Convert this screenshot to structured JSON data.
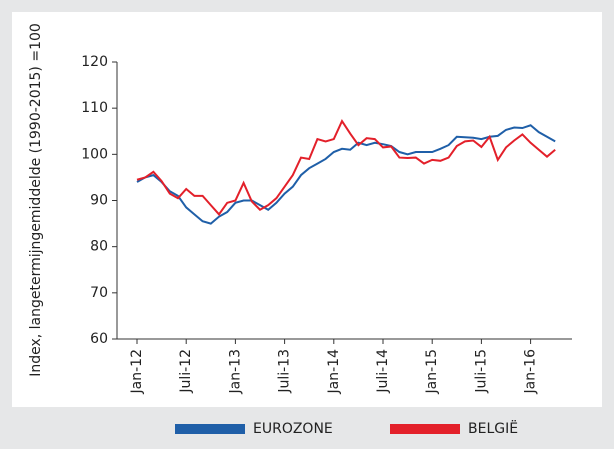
{
  "chart_data": {
    "type": "line",
    "y_label": "Index, langetermijngemiddelde (1990-2015) =100",
    "categories": [
      "Jan-12",
      null,
      null,
      null,
      null,
      null,
      "Juli-12",
      null,
      null,
      null,
      null,
      null,
      "Jan-13",
      null,
      null,
      null,
      null,
      null,
      "Juli-13",
      null,
      null,
      null,
      null,
      null,
      "Jan-14",
      null,
      null,
      null,
      null,
      null,
      "Juli-14",
      null,
      null,
      null,
      null,
      null,
      "Jan-15",
      null,
      null,
      null,
      null,
      null,
      "Juli-15",
      null,
      null,
      null,
      null,
      null,
      "Jan-16",
      null,
      null,
      null
    ],
    "series": [
      {
        "name": "EUROZONE",
        "color": "#1f5fa8",
        "values": [
          94,
          95,
          95.5,
          94,
          92,
          91,
          88.5,
          87,
          85.5,
          85,
          86.5,
          87.5,
          89.5,
          90,
          90,
          89,
          88,
          89.5,
          91.5,
          93,
          95.5,
          97,
          98,
          99,
          100.5,
          101.2,
          101,
          102.5,
          102,
          102.5,
          102.2,
          101.8,
          100.5,
          100,
          100.5,
          100.5,
          100.5,
          101.2,
          102,
          103.8,
          103.7,
          103.6,
          103.3,
          103.8,
          104,
          105.3,
          105.8,
          105.7,
          106.3,
          104.8,
          103.8,
          102.8
        ]
      },
      {
        "name": "BELGIË",
        "color": "#e3202a",
        "values": [
          94.5,
          95,
          96.2,
          94.2,
          91.5,
          90.5,
          92.5,
          91,
          91,
          89,
          87,
          89.5,
          90,
          93.8,
          89.8,
          88,
          89,
          90.5,
          93,
          95.5,
          99.3,
          99,
          103.3,
          102.8,
          103.3,
          107.2,
          104.5,
          102,
          103.5,
          103.3,
          101.5,
          101.7,
          99.3,
          99.2,
          99.3,
          98,
          98.8,
          98.6,
          99.3,
          101.8,
          102.8,
          103,
          101.6,
          103.8,
          98.8,
          101.5,
          103,
          104.3,
          102.5,
          101,
          99.5,
          101
        ]
      }
    ],
    "ylim": [
      60,
      120
    ],
    "yticks": [
      60,
      70,
      80,
      90,
      100,
      110,
      120
    ],
    "grid": false
  }
}
